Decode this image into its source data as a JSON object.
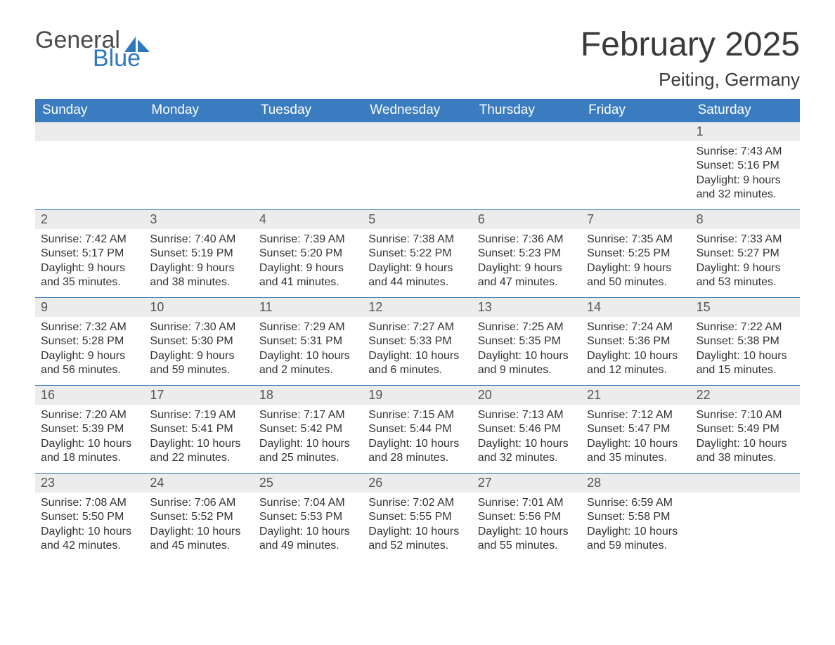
{
  "logo": {
    "general": "General",
    "blue": "Blue",
    "sail_color": "#2f78bf"
  },
  "title": "February 2025",
  "location": "Peiting, Germany",
  "colors": {
    "header_bg": "#3a7cbf",
    "header_text": "#ffffff",
    "daynum_bg": "#ececec",
    "rule": "#3a7cbf",
    "body_text": "#333333"
  },
  "days_of_week": [
    "Sunday",
    "Monday",
    "Tuesday",
    "Wednesday",
    "Thursday",
    "Friday",
    "Saturday"
  ],
  "weeks": [
    [
      null,
      null,
      null,
      null,
      null,
      null,
      {
        "n": "1",
        "sunrise": "Sunrise: 7:43 AM",
        "sunset": "Sunset: 5:16 PM",
        "dl1": "Daylight: 9 hours",
        "dl2": "and 32 minutes."
      }
    ],
    [
      {
        "n": "2",
        "sunrise": "Sunrise: 7:42 AM",
        "sunset": "Sunset: 5:17 PM",
        "dl1": "Daylight: 9 hours",
        "dl2": "and 35 minutes."
      },
      {
        "n": "3",
        "sunrise": "Sunrise: 7:40 AM",
        "sunset": "Sunset: 5:19 PM",
        "dl1": "Daylight: 9 hours",
        "dl2": "and 38 minutes."
      },
      {
        "n": "4",
        "sunrise": "Sunrise: 7:39 AM",
        "sunset": "Sunset: 5:20 PM",
        "dl1": "Daylight: 9 hours",
        "dl2": "and 41 minutes."
      },
      {
        "n": "5",
        "sunrise": "Sunrise: 7:38 AM",
        "sunset": "Sunset: 5:22 PM",
        "dl1": "Daylight: 9 hours",
        "dl2": "and 44 minutes."
      },
      {
        "n": "6",
        "sunrise": "Sunrise: 7:36 AM",
        "sunset": "Sunset: 5:23 PM",
        "dl1": "Daylight: 9 hours",
        "dl2": "and 47 minutes."
      },
      {
        "n": "7",
        "sunrise": "Sunrise: 7:35 AM",
        "sunset": "Sunset: 5:25 PM",
        "dl1": "Daylight: 9 hours",
        "dl2": "and 50 minutes."
      },
      {
        "n": "8",
        "sunrise": "Sunrise: 7:33 AM",
        "sunset": "Sunset: 5:27 PM",
        "dl1": "Daylight: 9 hours",
        "dl2": "and 53 minutes."
      }
    ],
    [
      {
        "n": "9",
        "sunrise": "Sunrise: 7:32 AM",
        "sunset": "Sunset: 5:28 PM",
        "dl1": "Daylight: 9 hours",
        "dl2": "and 56 minutes."
      },
      {
        "n": "10",
        "sunrise": "Sunrise: 7:30 AM",
        "sunset": "Sunset: 5:30 PM",
        "dl1": "Daylight: 9 hours",
        "dl2": "and 59 minutes."
      },
      {
        "n": "11",
        "sunrise": "Sunrise: 7:29 AM",
        "sunset": "Sunset: 5:31 PM",
        "dl1": "Daylight: 10 hours",
        "dl2": "and 2 minutes."
      },
      {
        "n": "12",
        "sunrise": "Sunrise: 7:27 AM",
        "sunset": "Sunset: 5:33 PM",
        "dl1": "Daylight: 10 hours",
        "dl2": "and 6 minutes."
      },
      {
        "n": "13",
        "sunrise": "Sunrise: 7:25 AM",
        "sunset": "Sunset: 5:35 PM",
        "dl1": "Daylight: 10 hours",
        "dl2": "and 9 minutes."
      },
      {
        "n": "14",
        "sunrise": "Sunrise: 7:24 AM",
        "sunset": "Sunset: 5:36 PM",
        "dl1": "Daylight: 10 hours",
        "dl2": "and 12 minutes."
      },
      {
        "n": "15",
        "sunrise": "Sunrise: 7:22 AM",
        "sunset": "Sunset: 5:38 PM",
        "dl1": "Daylight: 10 hours",
        "dl2": "and 15 minutes."
      }
    ],
    [
      {
        "n": "16",
        "sunrise": "Sunrise: 7:20 AM",
        "sunset": "Sunset: 5:39 PM",
        "dl1": "Daylight: 10 hours",
        "dl2": "and 18 minutes."
      },
      {
        "n": "17",
        "sunrise": "Sunrise: 7:19 AM",
        "sunset": "Sunset: 5:41 PM",
        "dl1": "Daylight: 10 hours",
        "dl2": "and 22 minutes."
      },
      {
        "n": "18",
        "sunrise": "Sunrise: 7:17 AM",
        "sunset": "Sunset: 5:42 PM",
        "dl1": "Daylight: 10 hours",
        "dl2": "and 25 minutes."
      },
      {
        "n": "19",
        "sunrise": "Sunrise: 7:15 AM",
        "sunset": "Sunset: 5:44 PM",
        "dl1": "Daylight: 10 hours",
        "dl2": "and 28 minutes."
      },
      {
        "n": "20",
        "sunrise": "Sunrise: 7:13 AM",
        "sunset": "Sunset: 5:46 PM",
        "dl1": "Daylight: 10 hours",
        "dl2": "and 32 minutes."
      },
      {
        "n": "21",
        "sunrise": "Sunrise: 7:12 AM",
        "sunset": "Sunset: 5:47 PM",
        "dl1": "Daylight: 10 hours",
        "dl2": "and 35 minutes."
      },
      {
        "n": "22",
        "sunrise": "Sunrise: 7:10 AM",
        "sunset": "Sunset: 5:49 PM",
        "dl1": "Daylight: 10 hours",
        "dl2": "and 38 minutes."
      }
    ],
    [
      {
        "n": "23",
        "sunrise": "Sunrise: 7:08 AM",
        "sunset": "Sunset: 5:50 PM",
        "dl1": "Daylight: 10 hours",
        "dl2": "and 42 minutes."
      },
      {
        "n": "24",
        "sunrise": "Sunrise: 7:06 AM",
        "sunset": "Sunset: 5:52 PM",
        "dl1": "Daylight: 10 hours",
        "dl2": "and 45 minutes."
      },
      {
        "n": "25",
        "sunrise": "Sunrise: 7:04 AM",
        "sunset": "Sunset: 5:53 PM",
        "dl1": "Daylight: 10 hours",
        "dl2": "and 49 minutes."
      },
      {
        "n": "26",
        "sunrise": "Sunrise: 7:02 AM",
        "sunset": "Sunset: 5:55 PM",
        "dl1": "Daylight: 10 hours",
        "dl2": "and 52 minutes."
      },
      {
        "n": "27",
        "sunrise": "Sunrise: 7:01 AM",
        "sunset": "Sunset: 5:56 PM",
        "dl1": "Daylight: 10 hours",
        "dl2": "and 55 minutes."
      },
      {
        "n": "28",
        "sunrise": "Sunrise: 6:59 AM",
        "sunset": "Sunset: 5:58 PM",
        "dl1": "Daylight: 10 hours",
        "dl2": "and 59 minutes."
      },
      null
    ]
  ]
}
